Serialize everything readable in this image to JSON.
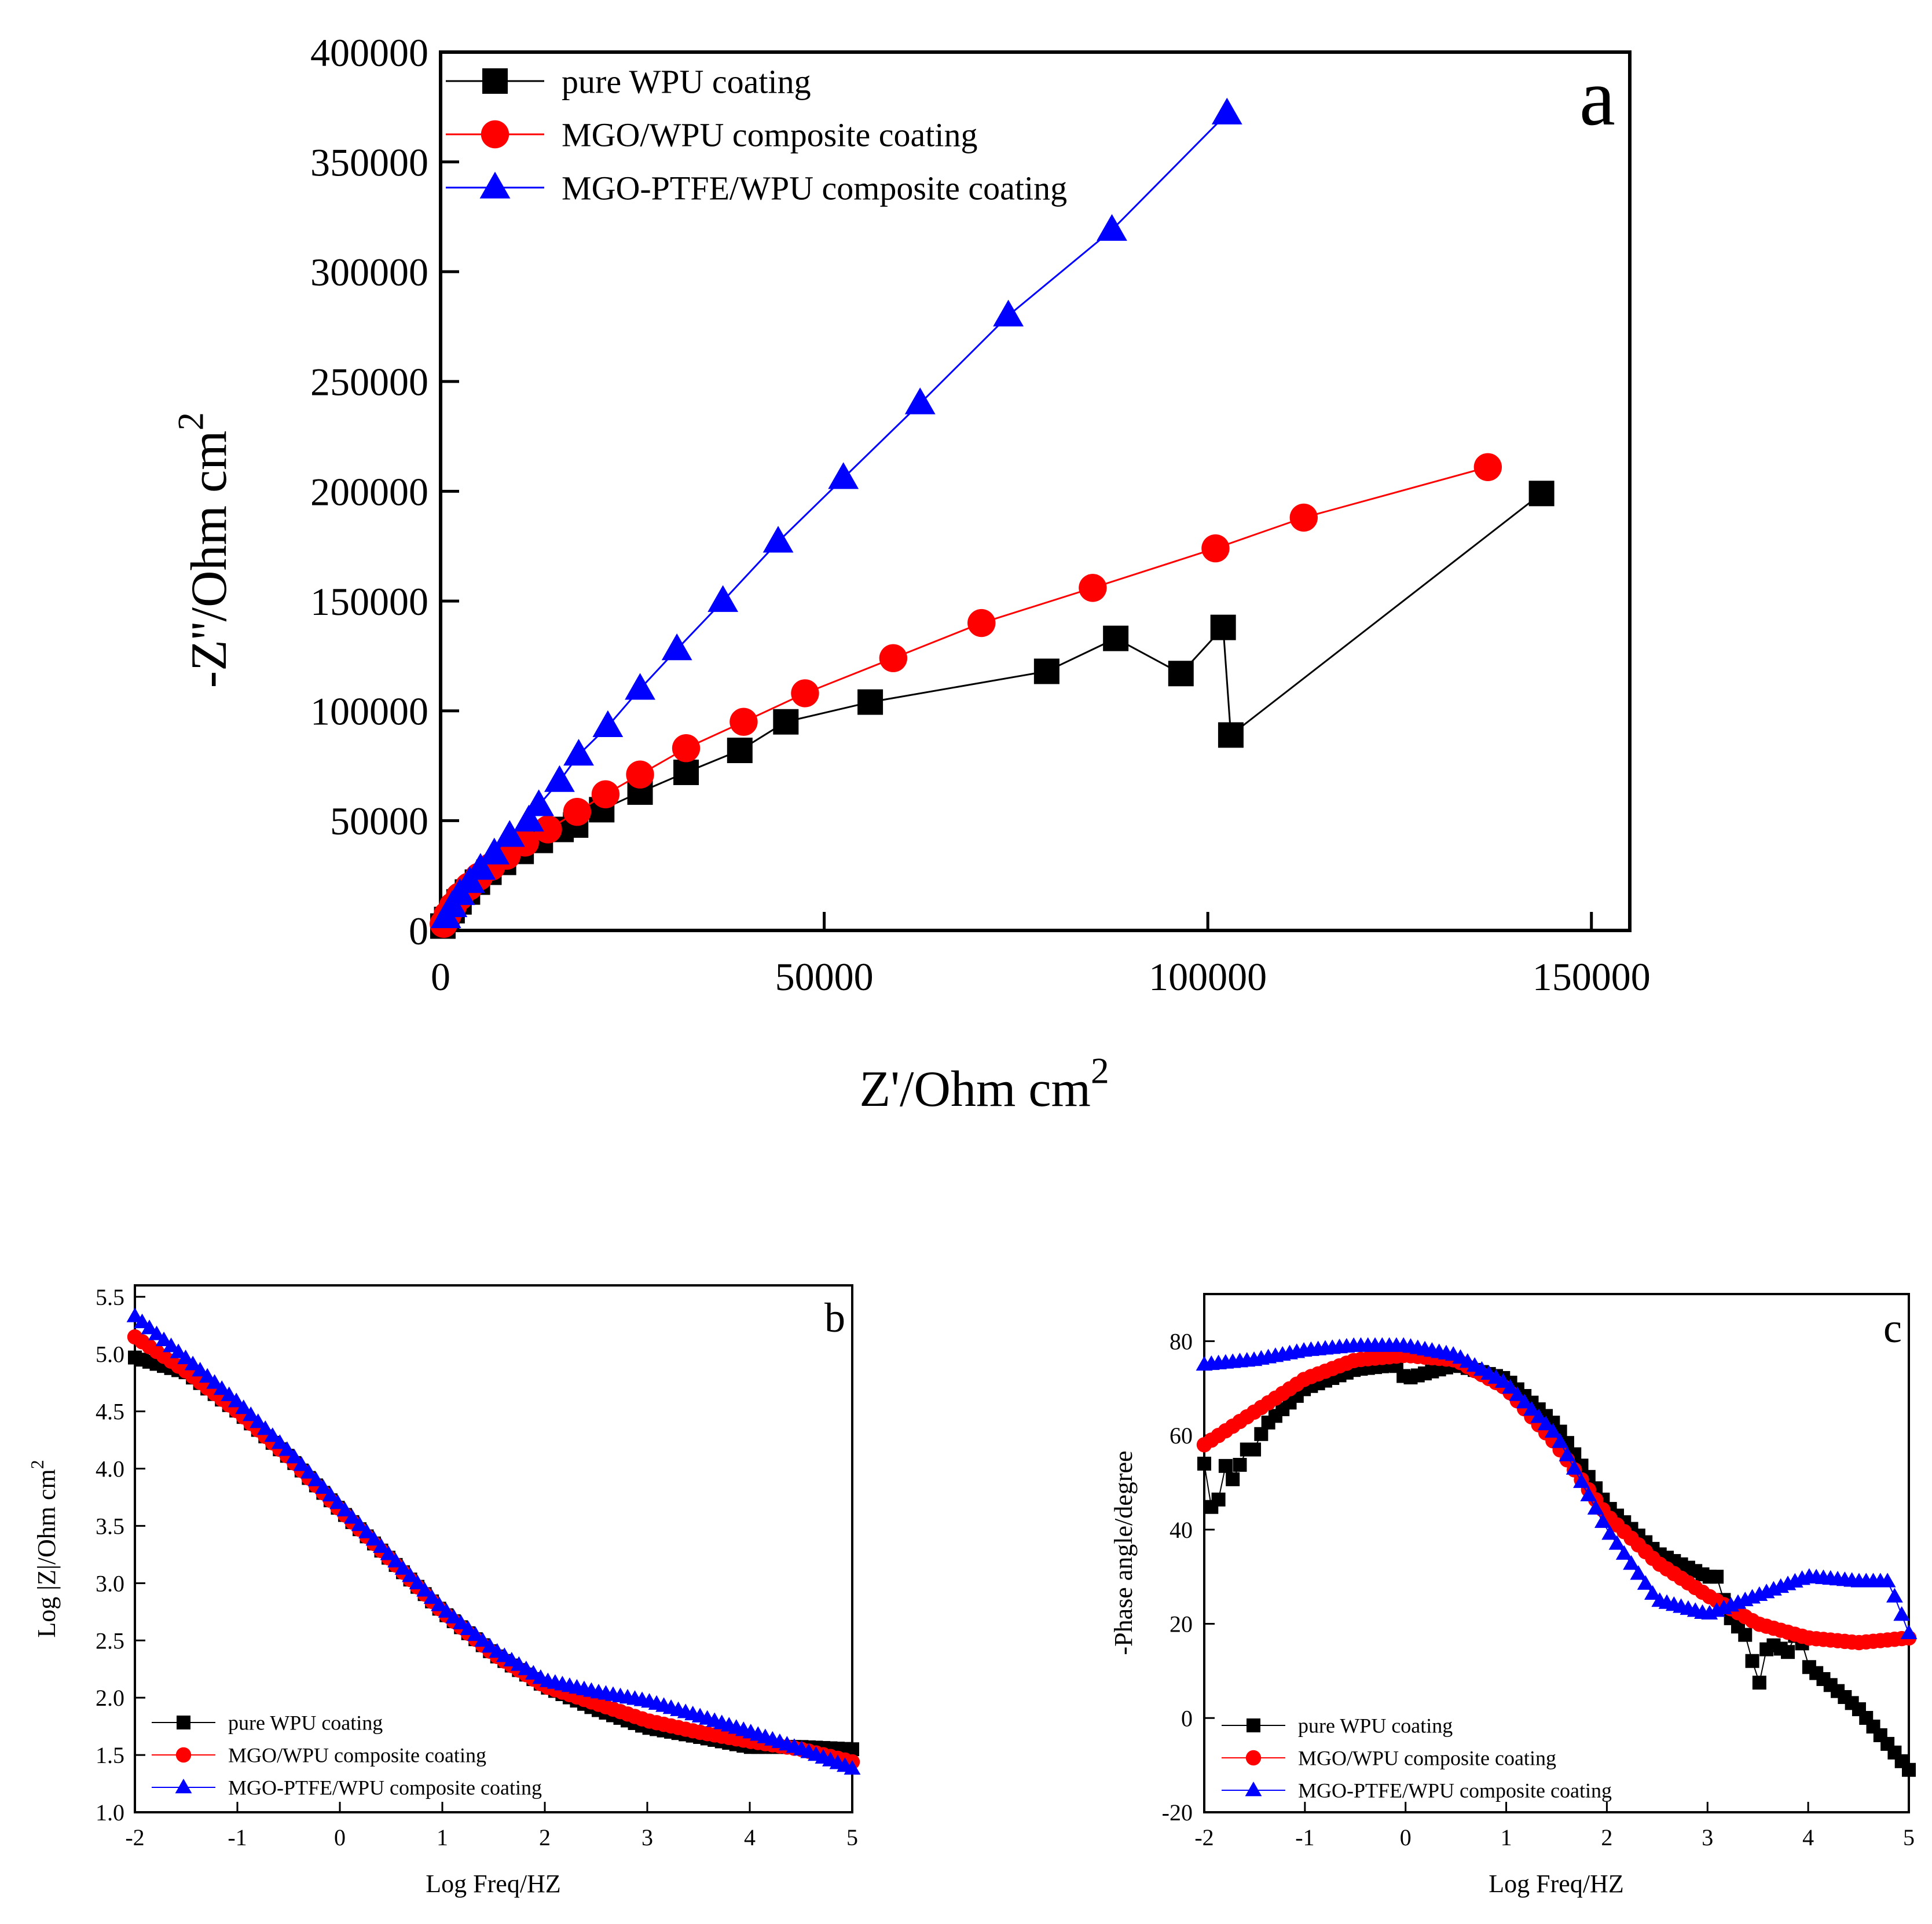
{
  "colors": {
    "black": "#000000",
    "red": "#ff0000",
    "blue": "#0000ff"
  },
  "chart_data": [
    {
      "id": "a",
      "type": "scatter",
      "panel_label": "a",
      "xlabel": "Z'/Ohm cm",
      "xlabel_sup": "2",
      "ylabel": "-Z''/Ohm cm",
      "ylabel_sup": "2",
      "xlim": [
        0,
        155000
      ],
      "ylim": [
        0,
        400000
      ],
      "xticks": [
        0,
        50000,
        100000,
        150000
      ],
      "xtick_labels": [
        "0",
        "50000",
        "100000",
        "150000"
      ],
      "yticks": [
        0,
        50000,
        100000,
        150000,
        200000,
        250000,
        300000,
        350000,
        400000
      ],
      "ytick_labels": [
        "0",
        "50000",
        "100000",
        "150000",
        "200000",
        "250000",
        "300000",
        "350000",
        "400000"
      ],
      "legend_position": "top-left",
      "series": [
        {
          "name": "pure WPU coating",
          "color": "#000000",
          "marker": "square",
          "x": [
            300,
            800,
            1500,
            2400,
            3500,
            4800,
            6300,
            8200,
            10500,
            13000,
            15700,
            17600,
            21000,
            26000,
            32000,
            39000,
            45000,
            56000,
            79000,
            88000,
            96500,
            102000,
            103000,
            143500
          ],
          "y": [
            2000,
            5000,
            9000,
            13000,
            17500,
            22000,
            26500,
            31000,
            36000,
            41000,
            46000,
            48000,
            55000,
            63000,
            72000,
            82000,
            95000,
            104000,
            118000,
            133000,
            117000,
            138000,
            89000,
            199000
          ]
        },
        {
          "name": "MGO/WPU composite coating",
          "color": "#ff0000",
          "marker": "circle",
          "x": [
            400,
            900,
            1600,
            2500,
            3700,
            5000,
            6600,
            8600,
            11000,
            14000,
            17800,
            21500,
            26000,
            32000,
            39500,
            47500,
            59000,
            70500,
            85000,
            101000,
            112500,
            136500
          ],
          "y": [
            3000,
            7000,
            11000,
            15500,
            20000,
            24500,
            29000,
            34000,
            40000,
            46000,
            54000,
            62000,
            71000,
            83000,
            95000,
            108000,
            124000,
            140000,
            156000,
            174000,
            188000,
            211000
          ]
        },
        {
          "name": "MGO-PTFE/WPU composite coating",
          "color": "#0000ff",
          "marker": "triangle",
          "x": [
            700,
            1500,
            2500,
            3800,
            5200,
            7000,
            9000,
            11500,
            12800,
            15500,
            18000,
            21800,
            26000,
            30800,
            36800,
            44000,
            52500,
            62500,
            74000,
            87500,
            102500
          ],
          "y": [
            6000,
            11000,
            16500,
            22000,
            28000,
            35000,
            43000,
            50000,
            57000,
            68000,
            80000,
            93000,
            110000,
            128000,
            150000,
            177000,
            206000,
            240000,
            280000,
            319000,
            372000
          ]
        }
      ]
    },
    {
      "id": "b",
      "type": "scatter",
      "panel_label": "b",
      "xlabel": "Log Freq/HZ",
      "ylabel": "Log |Z|/Ohm cm",
      "ylabel_sup": "2",
      "xlim": [
        -2,
        5
      ],
      "ylim": [
        1.0,
        5.6
      ],
      "xticks": [
        -2,
        -1,
        0,
        1,
        2,
        3,
        4,
        5
      ],
      "xtick_labels": [
        "-2",
        "-1",
        "0",
        "1",
        "2",
        "3",
        "4",
        "5"
      ],
      "yticks": [
        1.0,
        1.5,
        2.0,
        2.5,
        3.0,
        3.5,
        4.0,
        4.5,
        5.0,
        5.5
      ],
      "ytick_labels": [
        "1.0",
        "1.5",
        "2.0",
        "2.5",
        "3.0",
        "3.5",
        "4.0",
        "4.5",
        "5.0",
        "5.5"
      ],
      "legend_position": "bottom-left",
      "series": [
        {
          "name": "pure WPU coating",
          "color": "#000000",
          "marker": "square",
          "curve_x": [
            -2,
            -1.5,
            -1,
            -0.5,
            0,
            0.5,
            1,
            1.5,
            2,
            2.5,
            3,
            3.5,
            4,
            4.5,
            5
          ],
          "curve_y": [
            4.97,
            4.84,
            4.5,
            4.1,
            3.64,
            3.2,
            2.75,
            2.38,
            2.1,
            1.9,
            1.74,
            1.66,
            1.57,
            1.57,
            1.55
          ]
        },
        {
          "name": "MGO/WPU composite coating",
          "color": "#ff0000",
          "marker": "circle",
          "curve_x": [
            -2,
            -1.5,
            -1,
            -0.5,
            0,
            0.5,
            1,
            1.5,
            2,
            2.5,
            3,
            3.5,
            4,
            4.5,
            5
          ],
          "curve_y": [
            5.15,
            4.85,
            4.5,
            4.1,
            3.64,
            3.2,
            2.75,
            2.38,
            2.1,
            1.95,
            1.8,
            1.7,
            1.62,
            1.55,
            1.44
          ]
        },
        {
          "name": "MGO-PTFE/WPU composite coating",
          "color": "#0000ff",
          "marker": "triangle",
          "curve_x": [
            -2,
            -1.5,
            -1,
            -0.5,
            0,
            0.5,
            1,
            1.5,
            2,
            2.5,
            3,
            3.5,
            4,
            4.5,
            5
          ],
          "curve_y": [
            5.33,
            4.96,
            4.58,
            4.15,
            3.68,
            3.23,
            2.78,
            2.42,
            2.15,
            2.05,
            1.97,
            1.84,
            1.7,
            1.55,
            1.38
          ]
        }
      ]
    },
    {
      "id": "c",
      "type": "scatter",
      "panel_label": "c",
      "xlabel": "Log Freq/HZ",
      "ylabel": "-Phase angle/degree",
      "xlim": [
        -2,
        5
      ],
      "ylim": [
        -20,
        90
      ],
      "xticks": [
        -2,
        -1,
        0,
        1,
        2,
        3,
        4,
        5
      ],
      "xtick_labels": [
        "-2",
        "-1",
        "0",
        "1",
        "2",
        "3",
        "4",
        "5"
      ],
      "yticks": [
        -20,
        0,
        20,
        40,
        60,
        80
      ],
      "ytick_labels": [
        "-20",
        "0",
        "20",
        "40",
        "60",
        "80"
      ],
      "legend_position": "bottom-left",
      "series": [
        {
          "name": "pure WPU coating",
          "color": "#000000",
          "marker": "square",
          "curve_x": [
            -2,
            -1.9,
            -1.8,
            -1.7,
            -1.6,
            -1.5,
            -1.4,
            -1.2,
            -1,
            -0.5,
            -0.1,
            0,
            0.5,
            1,
            1.5,
            2,
            2.5,
            3,
            3.1,
            3.2,
            3.4,
            3.5,
            3.6,
            3.8,
            3.9,
            4,
            4.5,
            5
          ],
          "curve_y": [
            54,
            41,
            54,
            50,
            57,
            57,
            62,
            66,
            70,
            74,
            75,
            72,
            75,
            72,
            62,
            45,
            35,
            30,
            30,
            22,
            17,
            6,
            16,
            14,
            19,
            11,
            2,
            -11
          ]
        },
        {
          "name": "MGO/WPU composite coating",
          "color": "#ff0000",
          "marker": "circle",
          "curve_x": [
            -2,
            -1.5,
            -1,
            -0.5,
            0,
            0.5,
            1,
            1.5,
            2,
            2.5,
            3,
            3.5,
            4,
            4.5,
            5
          ],
          "curve_y": [
            58,
            65,
            72,
            76,
            77,
            76,
            70,
            58,
            43,
            33,
            26,
            20,
            17,
            16,
            17
          ]
        },
        {
          "name": "MGO-PTFE/WPU composite coating",
          "color": "#0000ff",
          "marker": "triangle",
          "curve_x": [
            -2,
            -1.5,
            -1,
            -0.5,
            0,
            0.5,
            1,
            1.5,
            2,
            2.5,
            3,
            3.5,
            4,
            4.5,
            4.8,
            5
          ],
          "curve_y": [
            75,
            76,
            78,
            79,
            79,
            77,
            71,
            60,
            40,
            25,
            22,
            26,
            30,
            29,
            29,
            18
          ]
        }
      ]
    }
  ]
}
